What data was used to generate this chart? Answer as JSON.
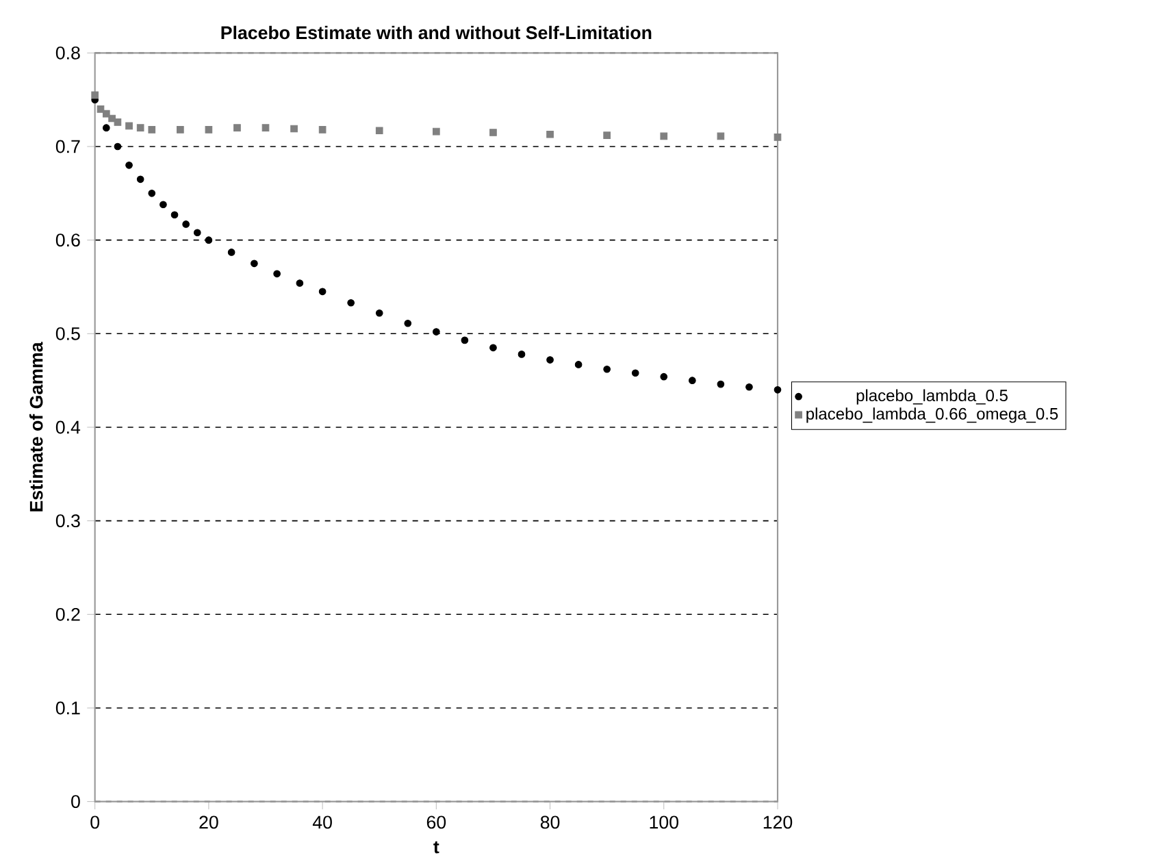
{
  "chart_data": {
    "type": "scatter",
    "title": "Placebo Estimate with and without Self-Limitation",
    "xlabel": "t",
    "ylabel": "Estimate of Gamma",
    "xlim": [
      0,
      120
    ],
    "xticks": [
      0,
      20,
      40,
      60,
      80,
      100,
      120
    ],
    "ylim": [
      0,
      0.8
    ],
    "yticks": [
      0,
      0.1,
      0.2,
      0.3,
      0.4,
      0.5,
      0.6,
      0.7,
      0.8
    ],
    "grid": "y",
    "legend": "right",
    "series": [
      {
        "name": "placebo_lambda_0.5",
        "color": "#000000",
        "marker": "circle",
        "x": [
          0,
          2,
          4,
          6,
          8,
          10,
          12,
          14,
          16,
          18,
          20,
          24,
          28,
          32,
          36,
          40,
          45,
          50,
          55,
          60,
          65,
          70,
          75,
          80,
          85,
          90,
          95,
          100,
          105,
          110,
          115,
          120
        ],
        "values": [
          0.75,
          0.72,
          0.7,
          0.68,
          0.665,
          0.65,
          0.638,
          0.627,
          0.617,
          0.608,
          0.6,
          0.587,
          0.575,
          0.564,
          0.554,
          0.545,
          0.533,
          0.522,
          0.511,
          0.502,
          0.493,
          0.485,
          0.478,
          0.472,
          0.467,
          0.462,
          0.458,
          0.454,
          0.45,
          0.446,
          0.443,
          0.44
        ]
      },
      {
        "name": "placebo_lambda_0.66_omega_0.5",
        "color": "#808080",
        "marker": "square",
        "x": [
          0,
          1,
          2,
          3,
          4,
          6,
          8,
          10,
          15,
          20,
          25,
          30,
          35,
          40,
          50,
          60,
          70,
          80,
          90,
          100,
          110,
          120
        ],
        "values": [
          0.755,
          0.74,
          0.735,
          0.73,
          0.726,
          0.722,
          0.72,
          0.718,
          0.718,
          0.718,
          0.72,
          0.72,
          0.719,
          0.718,
          0.717,
          0.716,
          0.715,
          0.713,
          0.712,
          0.711,
          0.711,
          0.71
        ]
      }
    ]
  }
}
